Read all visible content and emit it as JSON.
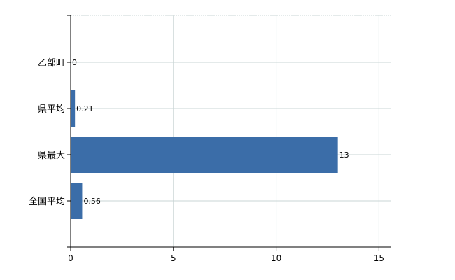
{
  "chart_data": {
    "type": "bar",
    "orientation": "horizontal",
    "categories": [
      "乙部町",
      "県平均",
      "県最大",
      "全国平均"
    ],
    "values": [
      0,
      0.21,
      13,
      0.56
    ],
    "data_labels": [
      "0",
      "0.21",
      "13",
      "0.56"
    ],
    "xticks": [
      "0",
      "5",
      "10",
      "15"
    ],
    "xlim": [
      0,
      15.6
    ],
    "grid": true,
    "bar_color": "#3b6da8",
    "grid_color": "#c8d4d4"
  }
}
